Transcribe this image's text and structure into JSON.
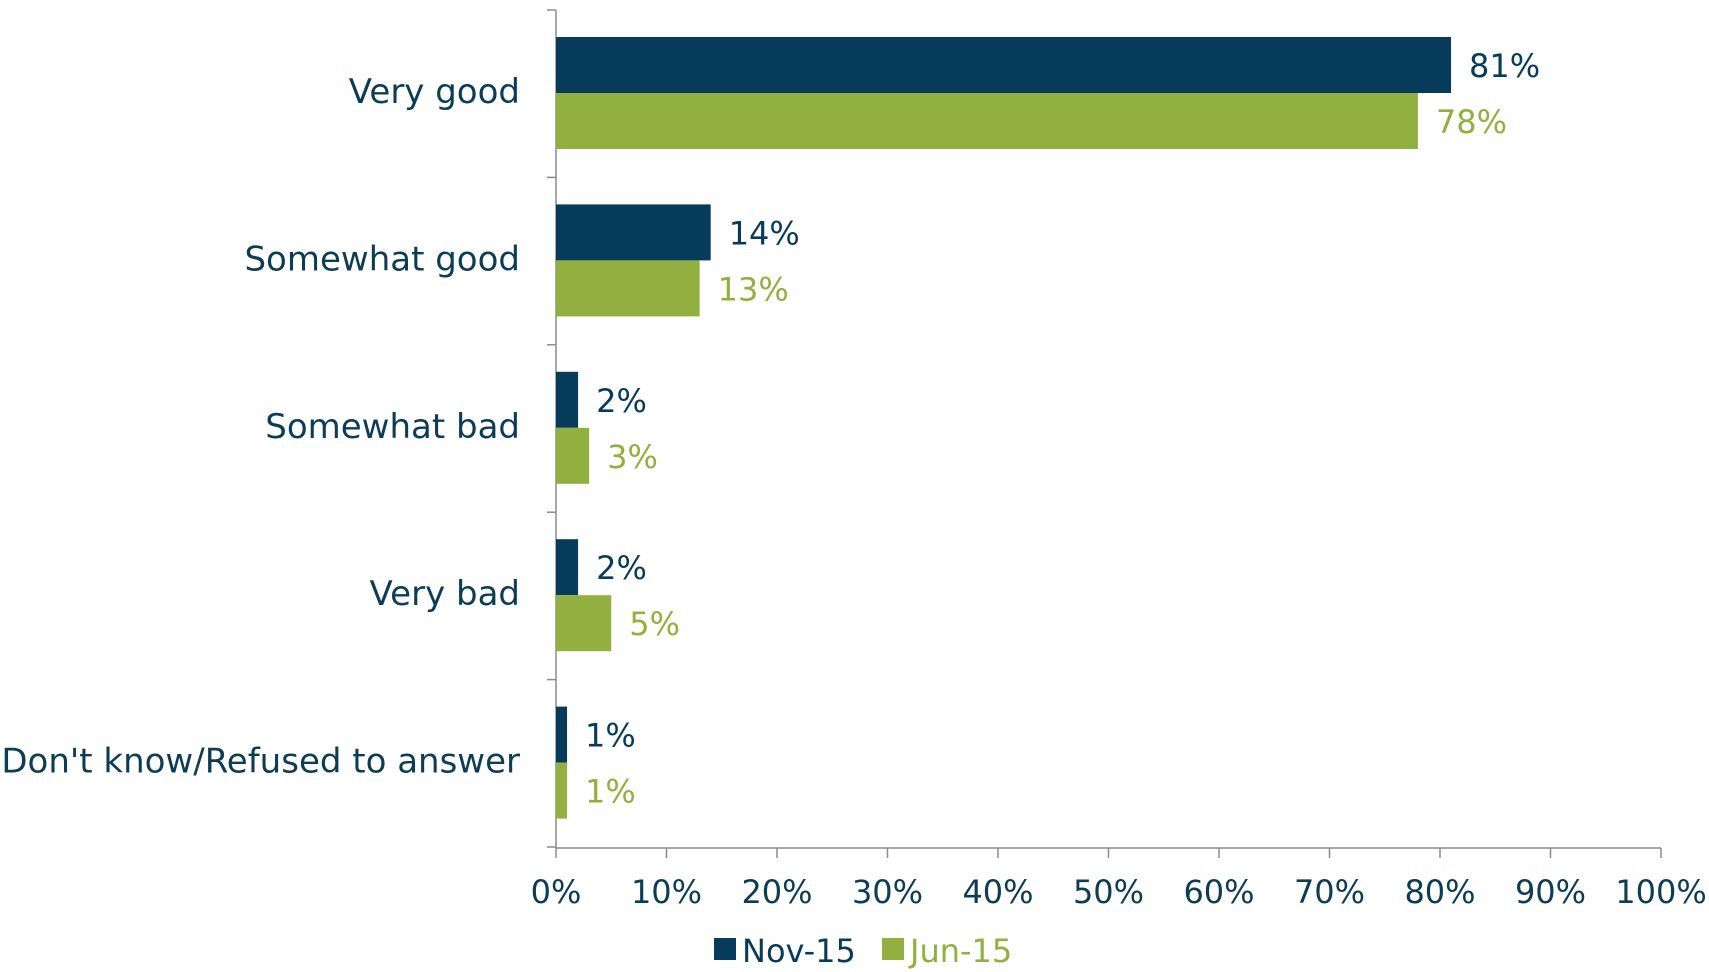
{
  "chart_data": {
    "type": "bar",
    "orientation": "horizontal",
    "title": "",
    "xlabel": "",
    "ylabel": "",
    "categories": [
      "Very good",
      "Somewhat good",
      "Somewhat bad",
      "Very bad",
      "Don't know/Refused to answer"
    ],
    "series": [
      {
        "name": "Nov-15",
        "color": "#073b5b",
        "values": [
          81,
          14,
          2,
          2,
          1
        ],
        "labels": [
          "81%",
          "14%",
          "2%",
          "2%",
          "1%"
        ]
      },
      {
        "name": "Jun-15",
        "color": "#92b03f",
        "values": [
          78,
          13,
          3,
          5,
          1
        ],
        "labels": [
          "78%",
          "13%",
          "3%",
          "5%",
          "1%"
        ]
      }
    ],
    "xlim": [
      0,
      100
    ],
    "xticks": [
      0,
      10,
      20,
      30,
      40,
      50,
      60,
      70,
      80,
      90,
      100
    ],
    "xtick_labels": [
      "0%",
      "10%",
      "20%",
      "30%",
      "40%",
      "50%",
      "60%",
      "70%",
      "80%",
      "90%",
      "100%"
    ],
    "grid": false,
    "legend_position": "bottom"
  }
}
